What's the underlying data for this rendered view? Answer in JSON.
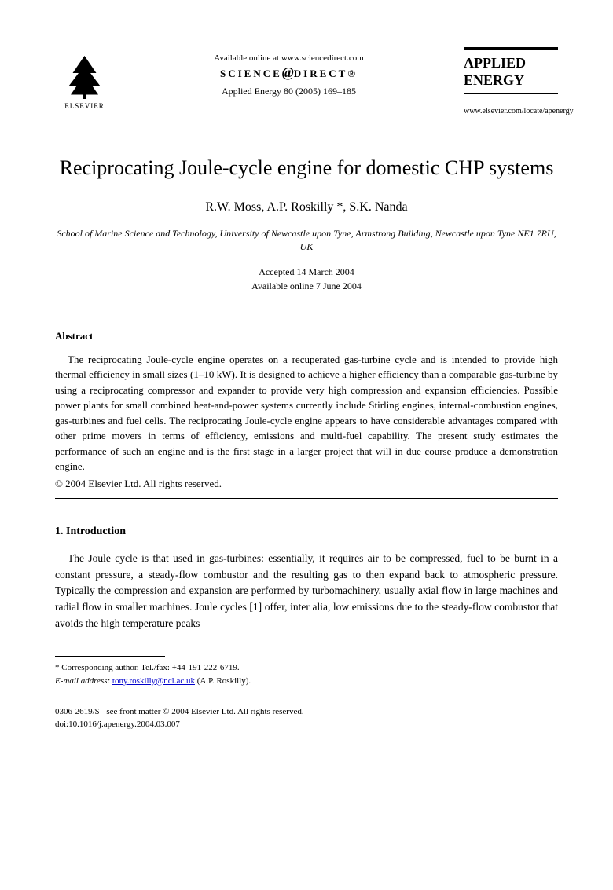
{
  "header": {
    "publisher": "ELSEVIER",
    "available_text": "Available online at www.sciencedirect.com",
    "science_direct": "SCIENCE",
    "science_direct_suffix": "DIRECT®",
    "journal_ref": "Applied Energy 80 (2005) 169–185",
    "journal_name_line1": "APPLIED",
    "journal_name_line2": "ENERGY",
    "journal_url": "www.elsevier.com/locate/apenergy"
  },
  "title": "Reciprocating Joule-cycle engine for domestic CHP systems",
  "authors": "R.W. Moss, A.P. Roskilly *, S.K. Nanda",
  "affiliation": "School of Marine Science and Technology, University of Newcastle upon Tyne, Armstrong Building, Newcastle upon Tyne NE1 7RU, UK",
  "dates": {
    "accepted": "Accepted 14 March 2004",
    "online": "Available online 7 June 2004"
  },
  "abstract": {
    "heading": "Abstract",
    "text": "The reciprocating Joule-cycle engine operates on a recuperated gas-turbine cycle and is intended to provide high thermal efficiency in small sizes (1–10 kW). It is designed to achieve a higher efficiency than a comparable gas-turbine by using a reciprocating compressor and expander to provide very high compression and expansion efficiencies. Possible power plants for small combined heat-and-power systems currently include Stirling engines, internal-combustion engines, gas-turbines and fuel cells. The reciprocating Joule-cycle engine appears to have considerable advantages compared with other prime movers in terms of efficiency, emissions and multi-fuel capability. The present study estimates the performance of such an engine and is the first stage in a larger project that will in due course produce a demonstration engine.",
    "copyright": "© 2004 Elsevier Ltd. All rights reserved."
  },
  "section1": {
    "heading": "1. Introduction",
    "text": "The Joule cycle is that used in gas-turbines: essentially, it requires air to be compressed, fuel to be burnt in a constant pressure, a steady-flow combustor and the resulting gas to then expand back to atmospheric pressure. Typically the compression and expansion are performed by turbomachinery, usually axial flow in large machines and radial flow in smaller machines. Joule cycles [1] offer, inter alia, low emissions due to the steady-flow combustor that avoids the high temperature peaks"
  },
  "footnote": {
    "corresponding": "* Corresponding author. Tel./fax: +44-191-222-6719.",
    "email_label": "E-mail address:",
    "email": "tony.roskilly@ncl.ac.uk",
    "email_suffix": "(A.P. Roskilly)."
  },
  "footer": {
    "issn": "0306-2619/$ - see front matter © 2004 Elsevier Ltd. All rights reserved.",
    "doi": "doi:10.1016/j.apenergy.2004.03.007"
  }
}
